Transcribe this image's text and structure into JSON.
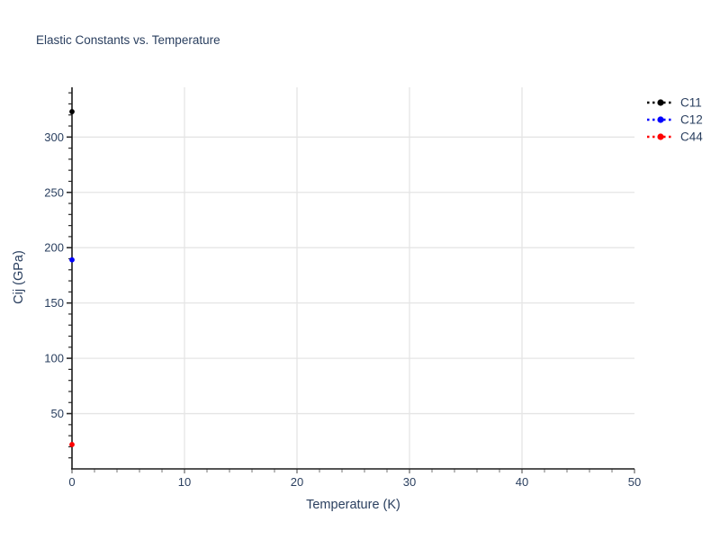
{
  "chart_data": {
    "type": "scatter",
    "title": "Elastic Constants vs. Temperature",
    "xlabel": "Temperature (K)",
    "ylabel": "Cij (GPa)",
    "xlim": [
      0,
      50
    ],
    "ylim": [
      0,
      345
    ],
    "x_ticks": [
      0,
      10,
      20,
      30,
      40,
      50
    ],
    "y_ticks": [
      50,
      100,
      150,
      200,
      250,
      300
    ],
    "x_minor_step": 2,
    "y_minor_step": 10,
    "grid": true,
    "legend_position": "outside-top-right",
    "series": [
      {
        "name": "C11",
        "color": "#000000",
        "line_style": "dot",
        "marker": "circle",
        "x": [
          0
        ],
        "y": [
          323
        ]
      },
      {
        "name": "C12",
        "color": "#0000ff",
        "line_style": "dot",
        "marker": "circle",
        "x": [
          0
        ],
        "y": [
          189
        ]
      },
      {
        "name": "C44",
        "color": "#ff0000",
        "line_style": "dot",
        "marker": "circle",
        "x": [
          0
        ],
        "y": [
          22
        ]
      }
    ],
    "colors": {
      "text": "#2a3f5f",
      "grid": "#e5e5e5",
      "axis_line": "#1c1c1c",
      "x_tick": "#8c8c8c",
      "y_tick": "#2b2b2b",
      "background": "#ffffff"
    }
  }
}
